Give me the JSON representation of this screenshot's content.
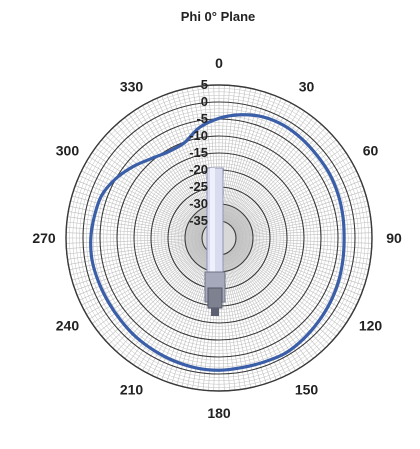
{
  "chart_data": {
    "type": "polar-line",
    "title": "Phi 0° Plane",
    "angular_ticks": [
      "0",
      "30",
      "60",
      "90",
      "120",
      "150",
      "180",
      "210",
      "240",
      "270",
      "300",
      "330"
    ],
    "angular_tick_values": [
      0,
      30,
      60,
      90,
      120,
      150,
      180,
      210,
      240,
      270,
      300,
      330
    ],
    "radial_ticks": [
      "5",
      "0",
      "-5",
      "-10",
      "-15",
      "-20",
      "-25",
      "-30",
      "-35"
    ],
    "radial_tick_values": [
      5,
      0,
      -5,
      -10,
      -15,
      -20,
      -25,
      -30,
      -35
    ],
    "rlim": [
      -40,
      5
    ],
    "angle_direction": "clockwise",
    "zero_location": "top",
    "grid": true,
    "series": [
      {
        "color": "#3a5ea8",
        "angles": [
          0,
          10,
          20,
          30,
          40,
          50,
          60,
          70,
          80,
          90,
          100,
          110,
          120,
          130,
          140,
          150,
          160,
          170,
          180,
          190,
          200,
          210,
          220,
          230,
          240,
          250,
          260,
          270,
          280,
          290,
          300,
          310,
          320,
          330,
          340,
          350,
          360
        ],
        "values": [
          -4.8,
          -3.2,
          -2.1,
          -1.8,
          -2.0,
          -2.3,
          -2.4,
          -2.7,
          -3.0,
          -3.2,
          -3.0,
          -2.6,
          -2.2,
          -1.8,
          -1.3,
          -0.9,
          -1.2,
          -1.3,
          -1.1,
          -1.2,
          -1.5,
          -1.8,
          -2.0,
          -2.3,
          -2.4,
          -2.3,
          -2.1,
          -2.3,
          -2.8,
          -3.3,
          -5.0,
          -7.2,
          -9.4,
          -10.6,
          -10.2,
          -7.0,
          -4.8
        ]
      }
    ]
  },
  "colors": {
    "series_line": "#3a5ea8",
    "grid_fine": "#bfbfbf",
    "grid_major": "#3a3a3a",
    "center_fill": "#d8d8d8"
  },
  "device_icon": "antenna-illustration"
}
